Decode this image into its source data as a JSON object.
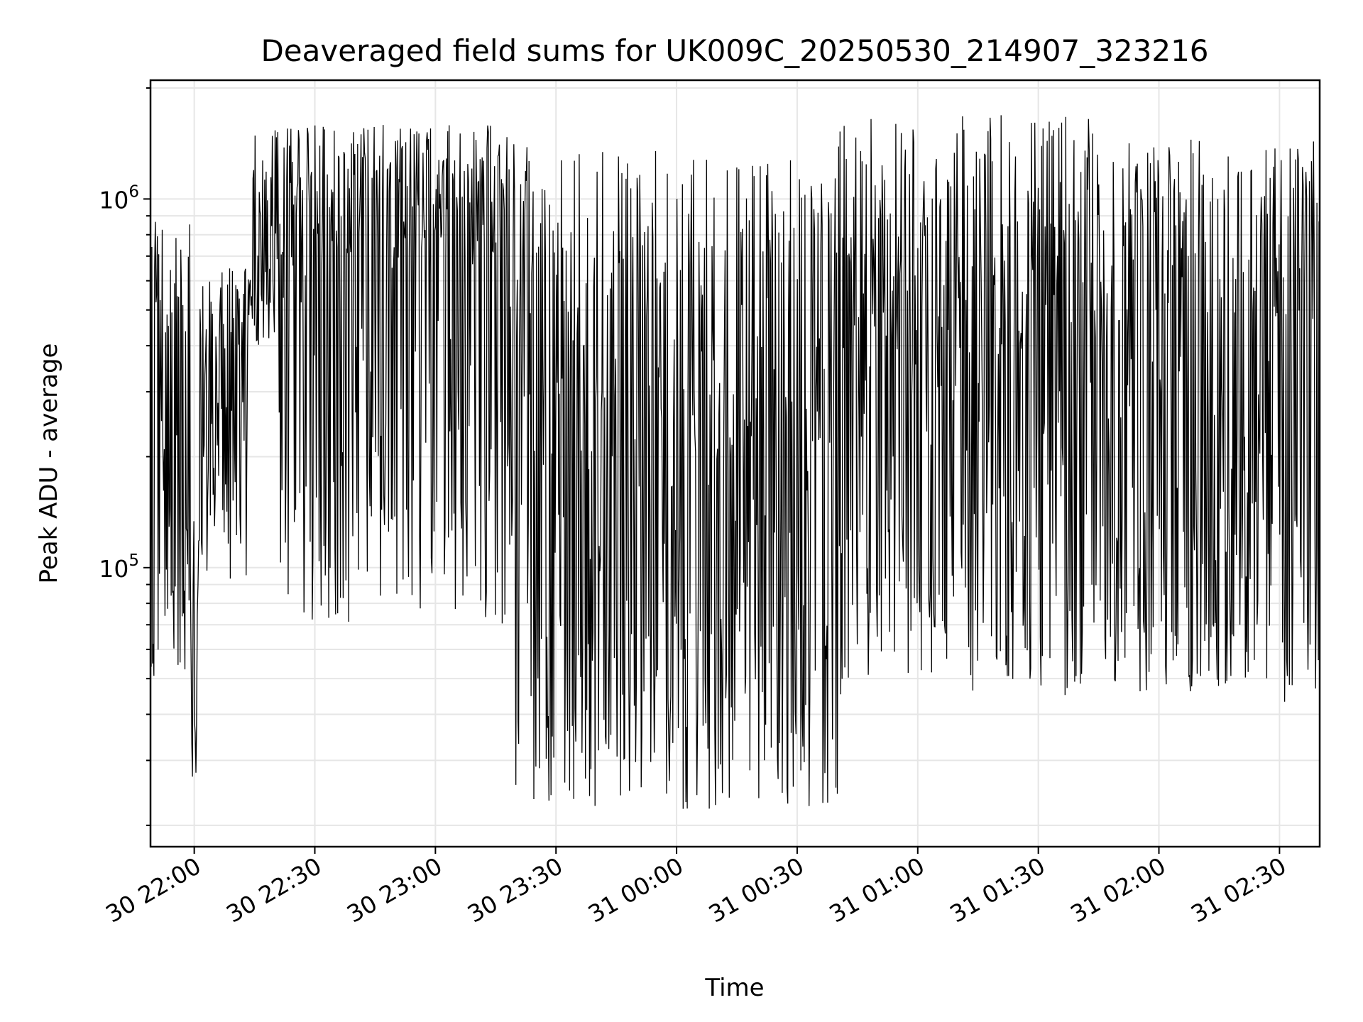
{
  "chart_data": {
    "type": "line",
    "title": "Deaveraged field sums for UK009C_20250530_214907_323216",
    "xlabel": "Time",
    "ylabel": "Peak ADU - average",
    "yscale": "log",
    "grid": true,
    "legend": "none",
    "x_range": [
      "2025-05-30 21:49:07",
      "2025-05-31 02:40:00"
    ],
    "ylim": [
      17500,
      2100000
    ],
    "x_ticks": [
      {
        "value": "2025-05-30 22:00",
        "label": "30 22:00"
      },
      {
        "value": "2025-05-30 22:30",
        "label": "30 22:30"
      },
      {
        "value": "2025-05-30 23:00",
        "label": "30 23:00"
      },
      {
        "value": "2025-05-30 23:30",
        "label": "30 23:30"
      },
      {
        "value": "2025-05-31 00:00",
        "label": "31 00:00"
      },
      {
        "value": "2025-05-31 00:30",
        "label": "31 00:30"
      },
      {
        "value": "2025-05-31 01:00",
        "label": "31 01:00"
      },
      {
        "value": "2025-05-31 01:30",
        "label": "31 01:30"
      },
      {
        "value": "2025-05-31 02:00",
        "label": "31 02:00"
      },
      {
        "value": "2025-05-31 02:30",
        "label": "31 02:30"
      }
    ],
    "y_ticks": [
      {
        "value": 100000,
        "base": "10",
        "exp": "5"
      },
      {
        "value": 1000000,
        "base": "10",
        "exp": "6"
      }
    ],
    "series_color": "#000000",
    "segments": [
      {
        "start": "2025-05-30 21:49:07",
        "end": "2025-05-30 21:59:00",
        "median": 400000,
        "spread_low": 50000,
        "spread_high": 900000
      },
      {
        "start": "2025-05-30 21:59:00",
        "end": "2025-05-30 22:01:00",
        "median": 50000,
        "spread_low": 25000,
        "spread_high": 180000
      },
      {
        "start": "2025-05-30 22:01:00",
        "end": "2025-05-30 22:14:00",
        "median": 350000,
        "spread_low": 90000,
        "spread_high": 650000
      },
      {
        "start": "2025-05-30 22:14:00",
        "end": "2025-05-30 22:20:00",
        "median": 700000,
        "spread_low": 400000,
        "spread_high": 1500000
      },
      {
        "start": "2025-05-30 22:20:00",
        "end": "2025-05-30 23:20:00",
        "median": 650000,
        "spread_low": 70000,
        "spread_high": 1600000
      },
      {
        "start": "2025-05-30 23:20:00",
        "end": "2025-05-31 00:40:00",
        "median": 180000,
        "spread_low": 22000,
        "spread_high": 1400000
      },
      {
        "start": "2025-05-31 00:40:00",
        "end": "2025-05-31 01:50:00",
        "median": 350000,
        "spread_low": 45000,
        "spread_high": 1700000
      },
      {
        "start": "2025-05-31 01:50:00",
        "end": "2025-05-31 02:40:00",
        "median": 450000,
        "spread_low": 43000,
        "spread_high": 1450000
      }
    ]
  }
}
